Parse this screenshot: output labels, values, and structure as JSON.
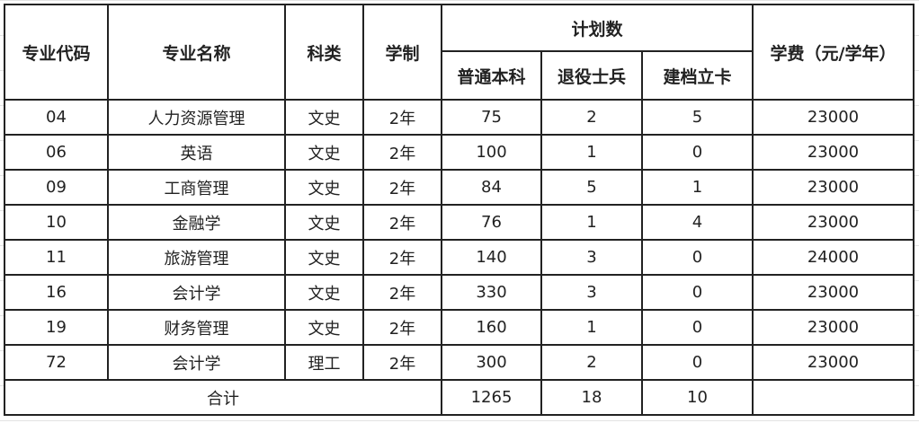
{
  "headers": {
    "code": "专业代码",
    "name": "专业名称",
    "category": "科类",
    "duration": "学制",
    "plan": "计划数",
    "plan_sub": [
      "普通本科",
      "退役士兵",
      "建档立卡"
    ],
    "fee": "学费（元/学年）"
  },
  "rows": [
    {
      "code": "04",
      "name": "人力资源管理",
      "category": "文史",
      "duration": "2年",
      "regular": "75",
      "veteran": "2",
      "poverty": "5",
      "fee": "23000"
    },
    {
      "code": "06",
      "name": "英语",
      "category": "文史",
      "duration": "2年",
      "regular": "100",
      "veteran": "1",
      "poverty": "0",
      "fee": "23000"
    },
    {
      "code": "09",
      "name": "工商管理",
      "category": "文史",
      "duration": "2年",
      "regular": "84",
      "veteran": "5",
      "poverty": "1",
      "fee": "23000"
    },
    {
      "code": "10",
      "name": "金融学",
      "category": "文史",
      "duration": "2年",
      "regular": "76",
      "veteran": "1",
      "poverty": "4",
      "fee": "23000"
    },
    {
      "code": "11",
      "name": "旅游管理",
      "category": "文史",
      "duration": "2年",
      "regular": "140",
      "veteran": "3",
      "poverty": "0",
      "fee": "24000"
    },
    {
      "code": "16",
      "name": "会计学",
      "category": "文史",
      "duration": "2年",
      "regular": "330",
      "veteran": "3",
      "poverty": "0",
      "fee": "23000"
    },
    {
      "code": "19",
      "name": "财务管理",
      "category": "文史",
      "duration": "2年",
      "regular": "160",
      "veteran": "1",
      "poverty": "0",
      "fee": "23000"
    },
    {
      "code": "72",
      "name": "会计学",
      "category": "理工",
      "duration": "2年",
      "regular": "300",
      "veteran": "2",
      "poverty": "0",
      "fee": "23000"
    }
  ],
  "total": {
    "label": "合计",
    "regular": "1265",
    "veteran": "18",
    "poverty": "10",
    "fee": ""
  }
}
